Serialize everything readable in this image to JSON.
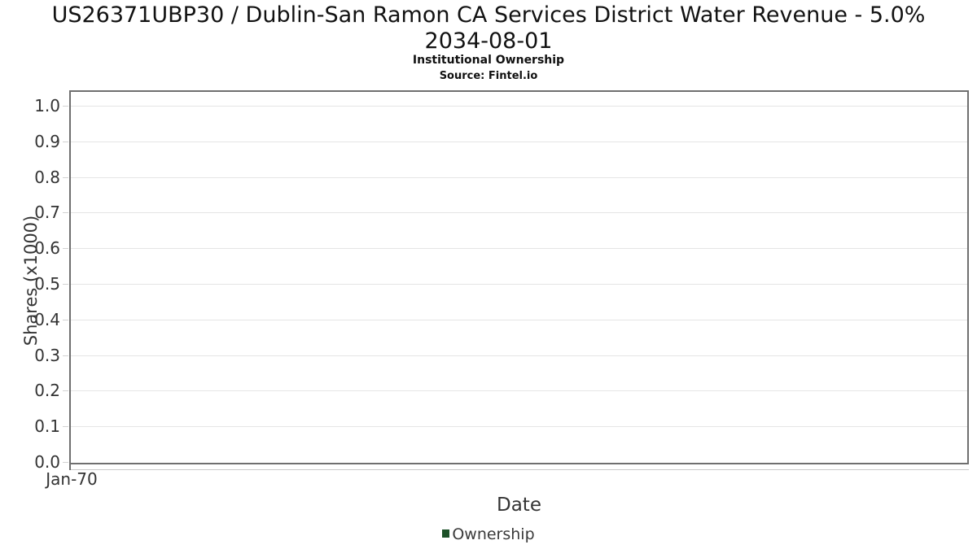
{
  "title": {
    "line1": "US26371UBP30 / Dublin-San Ramon CA Services District Water Revenue - 5.0%",
    "line2": "2034-08-01"
  },
  "subtitle": "Institutional Ownership",
  "source": "Source: Fintel.io",
  "y_axis": {
    "label": "Shares (x1000)",
    "tick_labels": [
      "0.0",
      "0.1",
      "0.2",
      "0.3",
      "0.4",
      "0.5",
      "0.6",
      "0.7",
      "0.8",
      "0.9",
      "1.0"
    ],
    "min": 0.0,
    "max": 1.0
  },
  "x_axis": {
    "label": "Date",
    "tick_labels": [
      "Jan-70"
    ]
  },
  "legend": {
    "items": [
      {
        "label": "Ownership",
        "marker_color": "#1d5128"
      }
    ]
  },
  "colors": {
    "plot_border": "#6f6f6f",
    "gridline": "#e5e5e5",
    "tick": "#d2d2d2",
    "text": "#333333",
    "title_text": "#121212",
    "series_green": "#1d5128"
  },
  "chart_data": {
    "type": "line",
    "title": "US26371UBP30 / Dublin-San Ramon CA Services District Water Revenue - 5.0% 2034-08-01",
    "subtitle": "Institutional Ownership",
    "source": "Source: Fintel.io",
    "xlabel": "Date",
    "ylabel": "Shares (x1000)",
    "x_tick_labels": [
      "Jan-70"
    ],
    "y_ticks": [
      0.0,
      0.1,
      0.2,
      0.3,
      0.4,
      0.5,
      0.6,
      0.7,
      0.8,
      0.9,
      1.0
    ],
    "ylim": [
      0.0,
      1.05
    ],
    "grid": true,
    "legend_position": "bottom-center",
    "series": [
      {
        "name": "Ownership",
        "color": "#1d5128",
        "x": [],
        "values": []
      }
    ]
  }
}
